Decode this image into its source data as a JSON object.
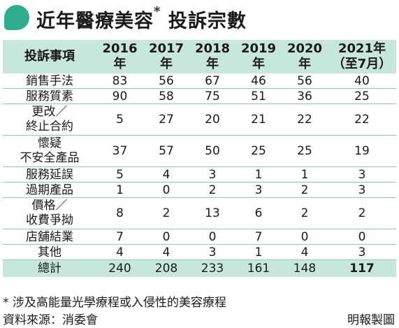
{
  "header": {
    "title": "近年醫療美容",
    "title_mark": "*",
    "title_suffix": "投訴宗數",
    "accent_color": "#2fae8f"
  },
  "chart_data": {
    "type": "table",
    "columns": [
      {
        "line1": "投訴事項",
        "line2": ""
      },
      {
        "line1": "2016",
        "line2": "年"
      },
      {
        "line1": "2017",
        "line2": "年"
      },
      {
        "line1": "2018",
        "line2": "年"
      },
      {
        "line1": "2019",
        "line2": "年"
      },
      {
        "line1": "2020",
        "line2": "年"
      },
      {
        "line1": "2021年",
        "line2": "（至7月）"
      }
    ],
    "rows": [
      {
        "label": [
          "銷售手法"
        ],
        "values": [
          "83",
          "56",
          "67",
          "46",
          "56",
          "40"
        ]
      },
      {
        "label": [
          "服務質素"
        ],
        "values": [
          "90",
          "58",
          "75",
          "51",
          "36",
          "25"
        ]
      },
      {
        "label": [
          "更改／",
          "終止合約"
        ],
        "values": [
          "5",
          "27",
          "20",
          "21",
          "22",
          "22"
        ]
      },
      {
        "label": [
          "懷疑",
          "不安全產品"
        ],
        "values": [
          "37",
          "57",
          "50",
          "25",
          "25",
          "19"
        ]
      },
      {
        "label": [
          "服務延誤"
        ],
        "values": [
          "5",
          "4",
          "3",
          "1",
          "1",
          "3"
        ]
      },
      {
        "label": [
          "過期產品"
        ],
        "values": [
          "1",
          "0",
          "2",
          "3",
          "2",
          "3"
        ]
      },
      {
        "label": [
          "價格／",
          "收費爭拗"
        ],
        "values": [
          "8",
          "2",
          "13",
          "6",
          "2",
          "2"
        ]
      },
      {
        "label": [
          "店舖結業"
        ],
        "values": [
          "7",
          "0",
          "0",
          "7",
          "0",
          "0"
        ]
      },
      {
        "label": [
          "其他"
        ],
        "values": [
          "4",
          "4",
          "3",
          "1",
          "4",
          "3"
        ]
      }
    ],
    "total": {
      "label": "總計",
      "values": [
        "240",
        "208",
        "233",
        "161",
        "148",
        "117"
      ]
    }
  },
  "footnote": "* 涉及高能量光學療程或入侵性的美容療程",
  "source": "資料來源：消委會",
  "credit": "明報製圖"
}
